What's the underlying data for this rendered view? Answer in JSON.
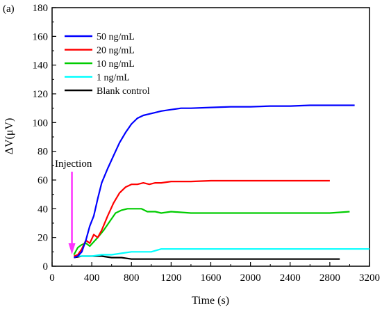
{
  "chart_data": {
    "type": "line",
    "panel_label": "(a)",
    "xlabel": "Time (s)",
    "ylabel": "ΔV(μV)",
    "xlim": [
      0,
      3200
    ],
    "ylim": [
      0,
      180
    ],
    "xticks": [
      0,
      400,
      800,
      1200,
      1600,
      2000,
      2400,
      2800,
      3200
    ],
    "yticks": [
      0,
      20,
      40,
      60,
      80,
      100,
      120,
      140,
      160,
      180
    ],
    "grid": false,
    "legend_position": "top-left",
    "annotation": {
      "text": "Injection",
      "x": 200,
      "color": "#ff33ff"
    },
    "series": [
      {
        "name": "50 ng/mL",
        "color": "#0000ff",
        "points": [
          [
            220,
            6
          ],
          [
            260,
            7
          ],
          [
            300,
            10
          ],
          [
            340,
            18
          ],
          [
            380,
            28
          ],
          [
            420,
            35
          ],
          [
            460,
            47
          ],
          [
            500,
            58
          ],
          [
            560,
            68
          ],
          [
            620,
            77
          ],
          [
            680,
            86
          ],
          [
            740,
            93
          ],
          [
            800,
            99
          ],
          [
            860,
            103
          ],
          [
            920,
            105
          ],
          [
            980,
            106
          ],
          [
            1040,
            107
          ],
          [
            1100,
            108
          ],
          [
            1200,
            109
          ],
          [
            1300,
            110
          ],
          [
            1400,
            110
          ],
          [
            1600,
            110.5
          ],
          [
            1800,
            111
          ],
          [
            2000,
            111
          ],
          [
            2200,
            111.5
          ],
          [
            2400,
            111.5
          ],
          [
            2600,
            112
          ],
          [
            2800,
            112
          ],
          [
            3050,
            112
          ]
        ]
      },
      {
        "name": "20 ng/mL",
        "color": "#ff0000",
        "points": [
          [
            220,
            7
          ],
          [
            260,
            8
          ],
          [
            300,
            12
          ],
          [
            340,
            18
          ],
          [
            380,
            16
          ],
          [
            420,
            22
          ],
          [
            460,
            20
          ],
          [
            500,
            25
          ],
          [
            560,
            35
          ],
          [
            620,
            44
          ],
          [
            680,
            51
          ],
          [
            740,
            55
          ],
          [
            800,
            57
          ],
          [
            860,
            57
          ],
          [
            920,
            58
          ],
          [
            980,
            57
          ],
          [
            1040,
            58
          ],
          [
            1100,
            58
          ],
          [
            1200,
            59
          ],
          [
            1400,
            59
          ],
          [
            1600,
            59.5
          ],
          [
            1800,
            59.5
          ],
          [
            2000,
            59.5
          ],
          [
            2200,
            59.5
          ],
          [
            2400,
            59.5
          ],
          [
            2600,
            59.5
          ],
          [
            2800,
            59.5
          ]
        ]
      },
      {
        "name": "10 ng/mL",
        "color": "#00cc00",
        "points": [
          [
            220,
            8
          ],
          [
            260,
            13
          ],
          [
            300,
            15
          ],
          [
            340,
            16
          ],
          [
            380,
            14
          ],
          [
            420,
            17
          ],
          [
            460,
            20
          ],
          [
            520,
            25
          ],
          [
            580,
            31
          ],
          [
            640,
            37
          ],
          [
            700,
            39
          ],
          [
            760,
            40
          ],
          [
            820,
            40
          ],
          [
            900,
            40
          ],
          [
            960,
            38
          ],
          [
            1040,
            38
          ],
          [
            1100,
            37
          ],
          [
            1200,
            38
          ],
          [
            1400,
            37
          ],
          [
            1600,
            37
          ],
          [
            1800,
            37
          ],
          [
            2000,
            37
          ],
          [
            2200,
            37
          ],
          [
            2400,
            37
          ],
          [
            2600,
            37
          ],
          [
            2800,
            37
          ],
          [
            3000,
            38
          ]
        ]
      },
      {
        "name": "1 ng/mL",
        "color": "#00ffff",
        "points": [
          [
            220,
            7
          ],
          [
            300,
            7
          ],
          [
            400,
            7
          ],
          [
            500,
            8
          ],
          [
            600,
            8
          ],
          [
            700,
            9
          ],
          [
            800,
            10
          ],
          [
            900,
            10
          ],
          [
            1000,
            10
          ],
          [
            1100,
            12
          ],
          [
            1200,
            12
          ],
          [
            1400,
            12
          ],
          [
            1600,
            12
          ],
          [
            1800,
            12
          ],
          [
            2000,
            12
          ],
          [
            2200,
            12
          ],
          [
            2400,
            12
          ],
          [
            2600,
            12
          ],
          [
            2800,
            12
          ],
          [
            3000,
            12
          ],
          [
            3200,
            12
          ]
        ]
      },
      {
        "name": "Blank control",
        "color": "#000000",
        "points": [
          [
            220,
            6
          ],
          [
            300,
            7
          ],
          [
            400,
            7
          ],
          [
            500,
            7
          ],
          [
            600,
            6
          ],
          [
            700,
            6
          ],
          [
            800,
            5
          ],
          [
            900,
            5
          ],
          [
            1000,
            5
          ],
          [
            1100,
            5
          ],
          [
            1200,
            5
          ],
          [
            1400,
            5
          ],
          [
            1600,
            5
          ],
          [
            1800,
            5
          ],
          [
            2000,
            5
          ],
          [
            2200,
            5
          ],
          [
            2400,
            5
          ],
          [
            2600,
            5
          ],
          [
            2800,
            5
          ],
          [
            2900,
            5
          ]
        ]
      }
    ]
  }
}
